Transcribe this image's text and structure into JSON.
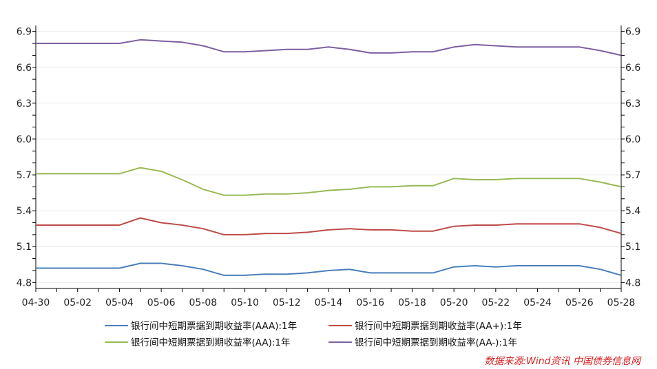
{
  "chart_data": {
    "type": "line",
    "x": [
      "04-30",
      "05-01",
      "05-02",
      "05-03",
      "05-04",
      "05-05",
      "05-06",
      "05-07",
      "05-08",
      "05-09",
      "05-10",
      "05-11",
      "05-12",
      "05-13",
      "05-14",
      "05-15",
      "05-16",
      "05-17",
      "05-18",
      "05-19",
      "05-20",
      "05-21",
      "05-22",
      "05-23",
      "05-24",
      "05-25",
      "05-26",
      "05-27",
      "05-28"
    ],
    "x_tick_labels": [
      "04-30",
      "05-02",
      "05-04",
      "05-06",
      "05-08",
      "05-10",
      "05-12",
      "05-14",
      "05-16",
      "05-18",
      "05-20",
      "05-22",
      "05-24",
      "05-26",
      "05-28"
    ],
    "ylim": [
      4.75,
      6.95
    ],
    "y_ticks": [
      "4.8",
      "5.1",
      "5.4",
      "5.7",
      "6.0",
      "6.3",
      "6.6",
      "6.9"
    ],
    "series": [
      {
        "name": "银行间中短期票据到期收益率(AAA):1年",
        "color": "#4a7ebb",
        "values": [
          4.92,
          4.92,
          4.92,
          4.92,
          4.92,
          4.96,
          4.96,
          4.94,
          4.91,
          4.86,
          4.86,
          4.87,
          4.87,
          4.88,
          4.9,
          4.91,
          4.88,
          4.88,
          4.88,
          4.88,
          4.93,
          4.94,
          4.93,
          4.94,
          4.94,
          4.94,
          4.94,
          4.91,
          4.86
        ]
      },
      {
        "name": "银行间中短期票据到期收益率(AA+):1年",
        "color": "#be4b48",
        "values": [
          5.28,
          5.28,
          5.28,
          5.28,
          5.28,
          5.34,
          5.3,
          5.28,
          5.25,
          5.2,
          5.2,
          5.21,
          5.21,
          5.22,
          5.24,
          5.25,
          5.24,
          5.24,
          5.23,
          5.23,
          5.27,
          5.28,
          5.28,
          5.29,
          5.29,
          5.29,
          5.29,
          5.26,
          5.21
        ]
      },
      {
        "name": "银行间中短期票据到期收益率(AA):1年",
        "color": "#98b954",
        "values": [
          5.71,
          5.71,
          5.71,
          5.71,
          5.71,
          5.76,
          5.73,
          5.66,
          5.58,
          5.53,
          5.53,
          5.54,
          5.54,
          5.55,
          5.57,
          5.58,
          5.6,
          5.6,
          5.61,
          5.61,
          5.67,
          5.66,
          5.66,
          5.67,
          5.67,
          5.67,
          5.67,
          5.64,
          5.6
        ]
      },
      {
        "name": "银行间中短期票据到期收益率(AA-):1年",
        "color": "#7d5fa0",
        "values": [
          6.8,
          6.8,
          6.8,
          6.8,
          6.8,
          6.83,
          6.82,
          6.81,
          6.78,
          6.73,
          6.73,
          6.74,
          6.75,
          6.75,
          6.77,
          6.75,
          6.72,
          6.72,
          6.73,
          6.73,
          6.77,
          6.79,
          6.78,
          6.77,
          6.77,
          6.77,
          6.77,
          6.74,
          6.7
        ]
      }
    ],
    "grid": true,
    "legend_position": "bottom",
    "source": "数据来源:Wind资讯 中国债券信息网"
  }
}
